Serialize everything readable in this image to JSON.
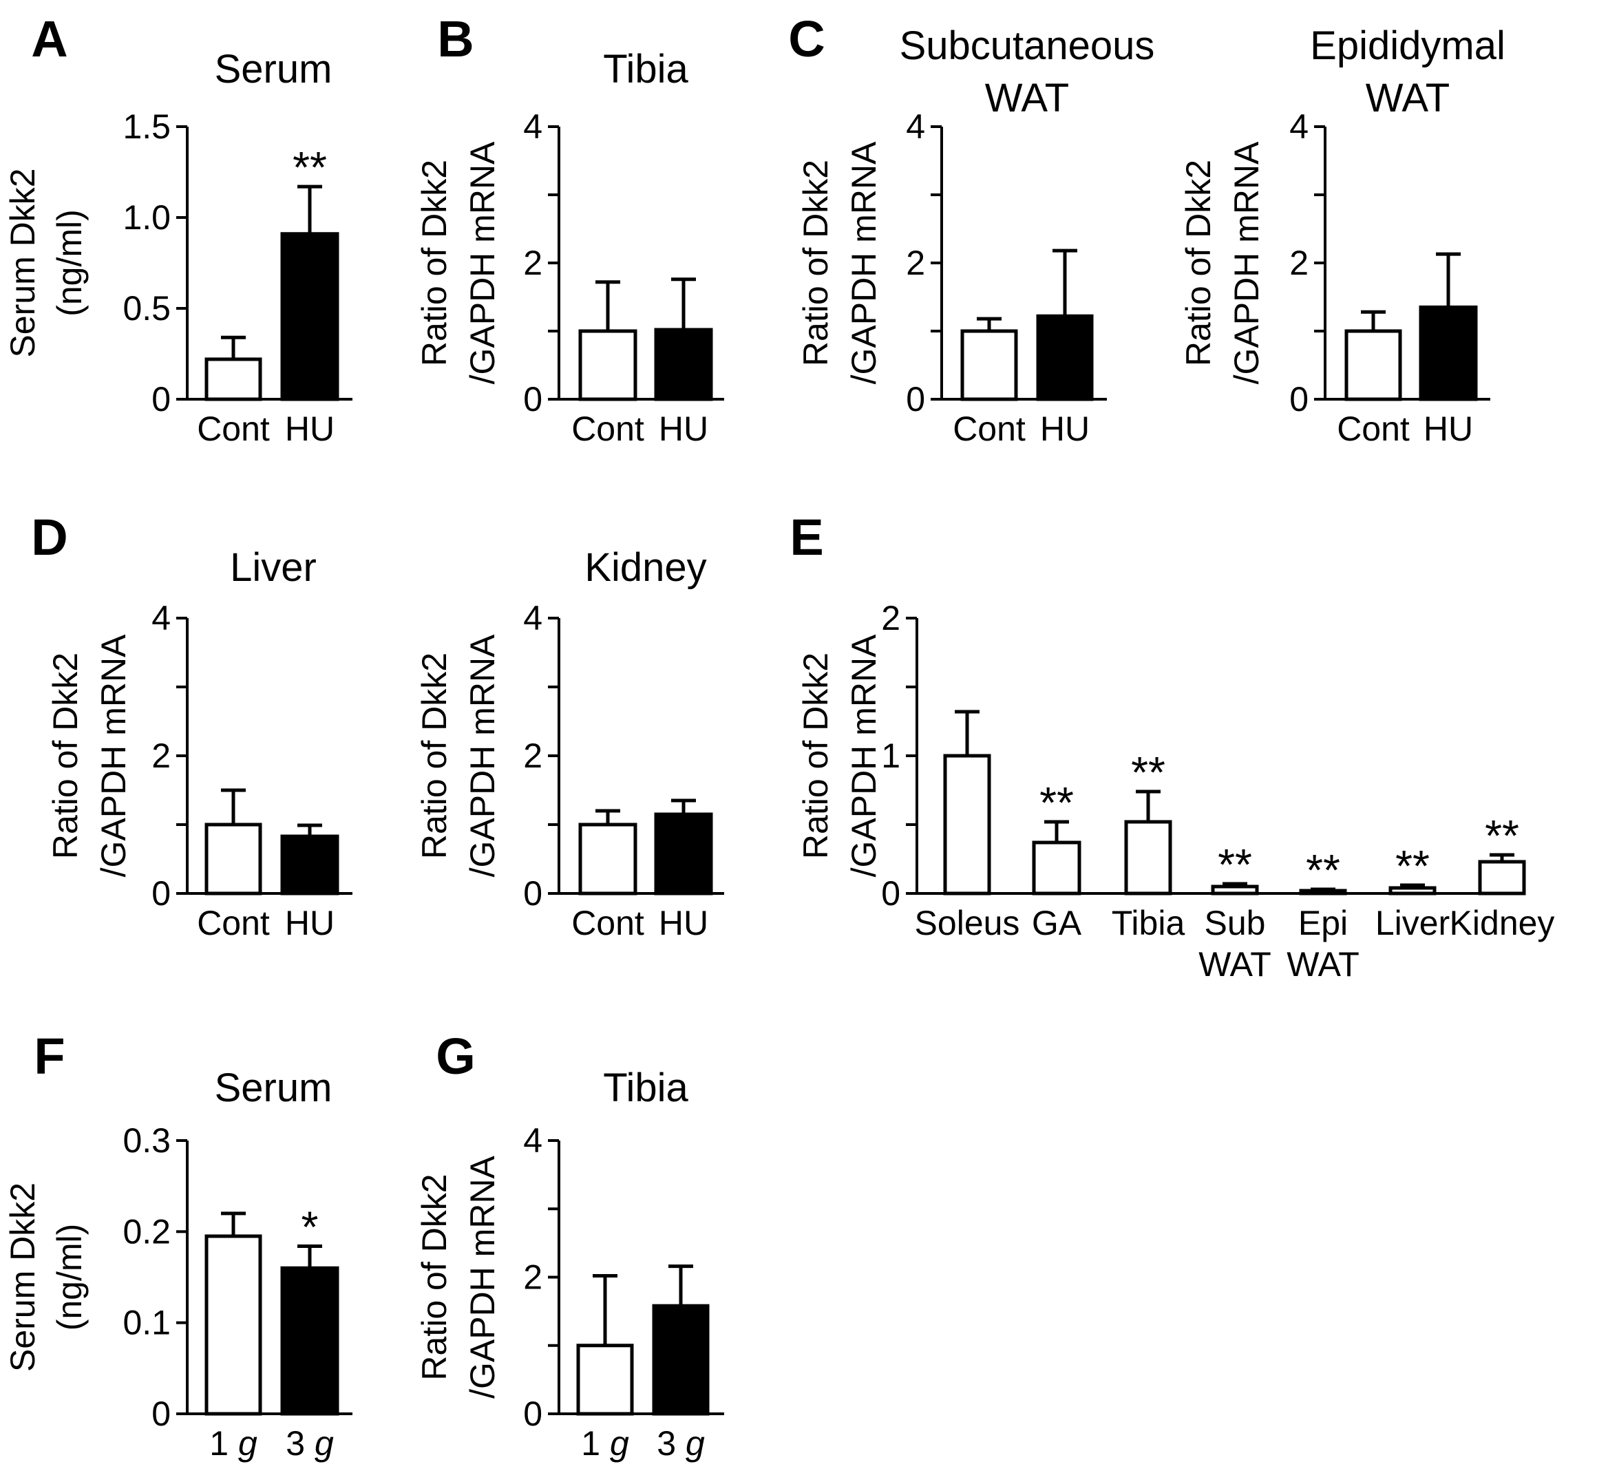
{
  "figure": {
    "description_language": "en",
    "colors": {
      "control_fill": "#ffffff",
      "treated_fill": "#000000",
      "stroke": "#000000",
      "background": "#ffffff"
    }
  },
  "chart_data": [
    {
      "id": "A",
      "type": "bar",
      "panel_letter": "A",
      "title": [
        "Serum"
      ],
      "ylabel": [
        "Serum Dkk2",
        "(ng/ml)"
      ],
      "categories": [
        "Cont",
        "HU"
      ],
      "category_lines": [
        [
          "Cont"
        ],
        [
          "HU"
        ]
      ],
      "values": [
        0.22,
        0.91
      ],
      "errors": [
        0.12,
        0.26
      ],
      "fills": [
        "control",
        "treated"
      ],
      "significance": [
        "",
        "**"
      ],
      "ylim": [
        0,
        1.5
      ],
      "yticks": [
        0,
        0.5,
        1.0,
        1.5
      ],
      "ytick_labels": [
        "0",
        "0.5",
        "1.0",
        "1.5"
      ]
    },
    {
      "id": "B",
      "type": "bar",
      "panel_letter": "B",
      "title": [
        "Tibia"
      ],
      "ylabel": [
        "Ratio of Dkk2",
        "/GAPDH mRNA"
      ],
      "categories": [
        "Cont",
        "HU"
      ],
      "category_lines": [
        [
          "Cont"
        ],
        [
          "HU"
        ]
      ],
      "values": [
        1.0,
        1.02
      ],
      "errors": [
        0.72,
        0.74
      ],
      "fills": [
        "control",
        "treated"
      ],
      "significance": [
        "",
        ""
      ],
      "ylim": [
        0,
        4
      ],
      "yticks": [
        0,
        1,
        2,
        3,
        4
      ],
      "ytick_labels": [
        "0",
        "",
        "2",
        "",
        "4"
      ]
    },
    {
      "id": "C1",
      "type": "bar",
      "panel_letter": "C",
      "title": [
        "Subcutaneous",
        "WAT"
      ],
      "ylabel": [
        "Ratio of Dkk2",
        "/GAPDH mRNA"
      ],
      "categories": [
        "Cont",
        "HU"
      ],
      "category_lines": [
        [
          "Cont"
        ],
        [
          "HU"
        ]
      ],
      "values": [
        1.0,
        1.22
      ],
      "errors": [
        0.18,
        0.96
      ],
      "fills": [
        "control",
        "treated"
      ],
      "significance": [
        "",
        ""
      ],
      "ylim": [
        0,
        4
      ],
      "yticks": [
        0,
        1,
        2,
        3,
        4
      ],
      "ytick_labels": [
        "0",
        "",
        "2",
        "",
        "4"
      ]
    },
    {
      "id": "C2",
      "type": "bar",
      "panel_letter": "",
      "title": [
        "Epididymal",
        "WAT"
      ],
      "ylabel": [
        "Ratio of Dkk2",
        "/GAPDH mRNA"
      ],
      "categories": [
        "Cont",
        "HU"
      ],
      "category_lines": [
        [
          "Cont"
        ],
        [
          "HU"
        ]
      ],
      "values": [
        1.0,
        1.35
      ],
      "errors": [
        0.28,
        0.78
      ],
      "fills": [
        "control",
        "treated"
      ],
      "significance": [
        "",
        ""
      ],
      "ylim": [
        0,
        4
      ],
      "yticks": [
        0,
        1,
        2,
        3,
        4
      ],
      "ytick_labels": [
        "0",
        "",
        "2",
        "",
        "4"
      ]
    },
    {
      "id": "D1",
      "type": "bar",
      "panel_letter": "D",
      "title": [
        "Liver"
      ],
      "ylabel": [
        "Ratio of Dkk2",
        "/GAPDH mRNA"
      ],
      "categories": [
        "Cont",
        "HU"
      ],
      "category_lines": [
        [
          "Cont"
        ],
        [
          "HU"
        ]
      ],
      "values": [
        1.0,
        0.83
      ],
      "errors": [
        0.5,
        0.16
      ],
      "fills": [
        "control",
        "treated"
      ],
      "significance": [
        "",
        ""
      ],
      "ylim": [
        0,
        4
      ],
      "yticks": [
        0,
        1,
        2,
        3,
        4
      ],
      "ytick_labels": [
        "0",
        "",
        "2",
        "",
        "4"
      ]
    },
    {
      "id": "D2",
      "type": "bar",
      "panel_letter": "",
      "title": [
        "Kidney"
      ],
      "ylabel": [
        "Ratio of Dkk2",
        "/GAPDH mRNA"
      ],
      "categories": [
        "Cont",
        "HU"
      ],
      "category_lines": [
        [
          "Cont"
        ],
        [
          "HU"
        ]
      ],
      "values": [
        1.0,
        1.15
      ],
      "errors": [
        0.2,
        0.2
      ],
      "fills": [
        "control",
        "treated"
      ],
      "significance": [
        "",
        ""
      ],
      "ylim": [
        0,
        4
      ],
      "yticks": [
        0,
        1,
        2,
        3,
        4
      ],
      "ytick_labels": [
        "0",
        "",
        "2",
        "",
        "4"
      ]
    },
    {
      "id": "E",
      "type": "bar",
      "panel_letter": "E",
      "title": [],
      "ylabel": [
        "Ratio of Dkk2",
        "/GAPDH mRNA"
      ],
      "categories": [
        "Soleus",
        "GA",
        "Tibia",
        "Sub WAT",
        "Epi WAT",
        "Liver",
        "Kidney"
      ],
      "category_lines": [
        [
          "Soleus"
        ],
        [
          "GA"
        ],
        [
          "Tibia"
        ],
        [
          "Sub",
          "WAT"
        ],
        [
          "Epi",
          "WAT"
        ],
        [
          "Liver"
        ],
        [
          "Kidney"
        ]
      ],
      "values": [
        1.0,
        0.37,
        0.52,
        0.05,
        0.02,
        0.04,
        0.23
      ],
      "errors": [
        0.32,
        0.15,
        0.22,
        0.02,
        0.01,
        0.02,
        0.05
      ],
      "fills": [
        "control",
        "control",
        "control",
        "control",
        "control",
        "control",
        "control"
      ],
      "significance": [
        "",
        "**",
        "**",
        "**",
        "**",
        "**",
        "**"
      ],
      "ylim": [
        0,
        2
      ],
      "yticks": [
        0,
        0.5,
        1,
        1.5,
        2
      ],
      "ytick_labels": [
        "0",
        "",
        "1",
        "",
        "2"
      ]
    },
    {
      "id": "F",
      "type": "bar",
      "panel_letter": "F",
      "title": [
        "Serum"
      ],
      "ylabel": [
        "Serum Dkk2",
        "(ng/ml)"
      ],
      "categories": [
        "1 g",
        "3 g"
      ],
      "category_lines": [
        [
          "1 g"
        ],
        [
          "3 g"
        ]
      ],
      "values": [
        0.195,
        0.16
      ],
      "errors": [
        0.025,
        0.024
      ],
      "fills": [
        "control",
        "treated"
      ],
      "significance": [
        "",
        "*"
      ],
      "ylim": [
        0,
        0.3
      ],
      "yticks": [
        0,
        0.1,
        0.2,
        0.3
      ],
      "ytick_labels": [
        "0",
        "0.1",
        "0.2",
        "0.3"
      ]
    },
    {
      "id": "G",
      "type": "bar",
      "panel_letter": "G",
      "title": [
        "Tibia"
      ],
      "ylabel": [
        "Ratio of Dkk2",
        "/GAPDH mRNA"
      ],
      "categories": [
        "1 g",
        "3 g"
      ],
      "category_lines": [
        [
          "1 g"
        ],
        [
          "3 g"
        ]
      ],
      "values": [
        1.0,
        1.58
      ],
      "errors": [
        1.02,
        0.58
      ],
      "fills": [
        "control",
        "treated"
      ],
      "significance": [
        "",
        ""
      ],
      "ylim": [
        0,
        4
      ],
      "yticks": [
        0,
        1,
        2,
        3,
        4
      ],
      "ytick_labels": [
        "0",
        "",
        "2",
        "",
        "4"
      ]
    }
  ]
}
